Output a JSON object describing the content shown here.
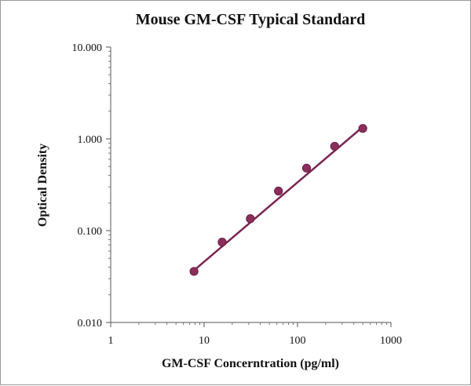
{
  "chart_data": {
    "type": "scatter",
    "title": "Mouse GM-CSF Typical Standard",
    "xlabel": "GM-CSF Concerntration (pg/ml)",
    "ylabel": "Optical Density",
    "x_scale": "log",
    "y_scale": "log",
    "xlim": [
      1,
      1000
    ],
    "ylim": [
      0.01,
      10
    ],
    "x_ticks": [
      "1",
      "10",
      "100",
      "1000"
    ],
    "y_ticks": [
      "10.000",
      "1.000",
      "0.100",
      "0.010"
    ],
    "grid": false,
    "series": [
      {
        "x": [
          7.8,
          15.6,
          31.25,
          62.5,
          125,
          250,
          500
        ],
        "y": [
          0.036,
          0.075,
          0.135,
          0.27,
          0.48,
          0.83,
          1.3
        ],
        "marker_color": "#8a2e5c",
        "line_color": "#7a2452",
        "fit_line": {
          "x": [
            7.8,
            500
          ],
          "y": [
            0.037,
            1.35
          ]
        }
      }
    ]
  }
}
